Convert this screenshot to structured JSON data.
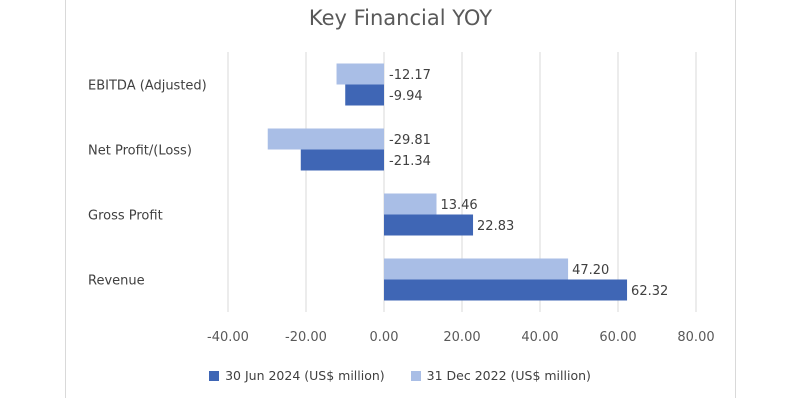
{
  "chart_data": {
    "type": "bar",
    "orientation": "horizontal",
    "title": "Key Financial YOY",
    "categories": [
      "EBITDA (Adjusted)",
      "Net Profit/(Loss)",
      "Gross Profit",
      "Revenue"
    ],
    "series": [
      {
        "name": "31 Dec 2022 (US$ million)",
        "color": "#a9bee6",
        "values": [
          -12.17,
          -29.81,
          13.46,
          47.2
        ],
        "labels": [
          "-12.17",
          "-29.81",
          "13.46",
          "47.20"
        ]
      },
      {
        "name": "30 Jun 2024 (US$ million)",
        "color": "#3f66b5",
        "values": [
          -9.94,
          -21.34,
          22.83,
          62.32
        ],
        "labels": [
          "-9.94",
          "-21.34",
          "22.83",
          "62.32"
        ]
      }
    ],
    "xlim": [
      -40,
      80
    ],
    "xticks": [
      "-40.00",
      "-20.00",
      "0.00",
      "20.00",
      "40.00",
      "60.00",
      "80.00"
    ],
    "grid": true,
    "legend_position": "bottom",
    "legend_order": [
      "30 Jun 2024 (US$ million)",
      "31 Dec 2022 (US$ million)"
    ]
  }
}
